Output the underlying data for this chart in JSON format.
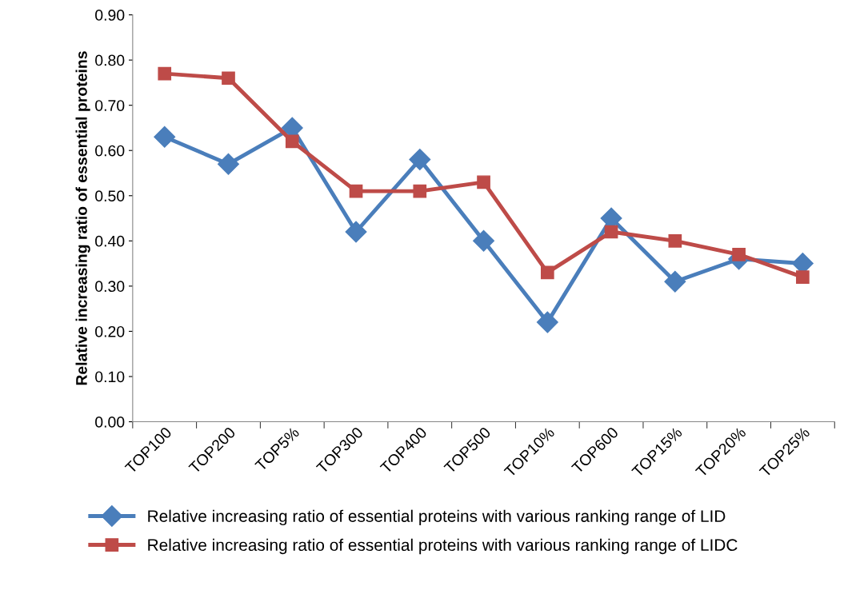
{
  "chart_data": {
    "type": "line",
    "ylabel": "Relative increasing ratio of essential proteins",
    "categories": [
      "TOP100",
      "TOP200",
      "TOP5%",
      "TOP300",
      "TOP400",
      "TOP500",
      "TOP10%",
      "TOP600",
      "TOP15%",
      "TOP20%",
      "TOP25%"
    ],
    "series": [
      {
        "name": "Relative increasing ratio of essential proteins with various ranking range of LID",
        "color": "#4a7ebb",
        "marker": "diamond",
        "values": [
          0.63,
          0.57,
          0.65,
          0.42,
          0.58,
          0.4,
          0.22,
          0.45,
          0.31,
          0.36,
          0.35
        ]
      },
      {
        "name": "Relative increasing ratio of essential proteins with various ranking range of LIDC",
        "color": "#be4b48",
        "marker": "square",
        "values": [
          0.77,
          0.76,
          0.62,
          0.51,
          0.51,
          0.53,
          0.33,
          0.42,
          0.4,
          0.37,
          0.32
        ]
      }
    ],
    "ylim": [
      0,
      0.9
    ],
    "yticks": [
      {
        "value": 0,
        "label": "0.00"
      },
      {
        "value": 0.1,
        "label": "0.10"
      },
      {
        "value": 0.2,
        "label": "0.20"
      },
      {
        "value": 0.3,
        "label": "0.30"
      },
      {
        "value": 0.4,
        "label": "0.40"
      },
      {
        "value": 0.5,
        "label": "0.50"
      },
      {
        "value": 0.6,
        "label": "0.60"
      },
      {
        "value": 0.7,
        "label": "0.70"
      },
      {
        "value": 0.8,
        "label": "0.80"
      },
      {
        "value": 0.9,
        "label": "0.90"
      }
    ],
    "grid": false,
    "legend": "bottom",
    "line_style": "solid"
  }
}
